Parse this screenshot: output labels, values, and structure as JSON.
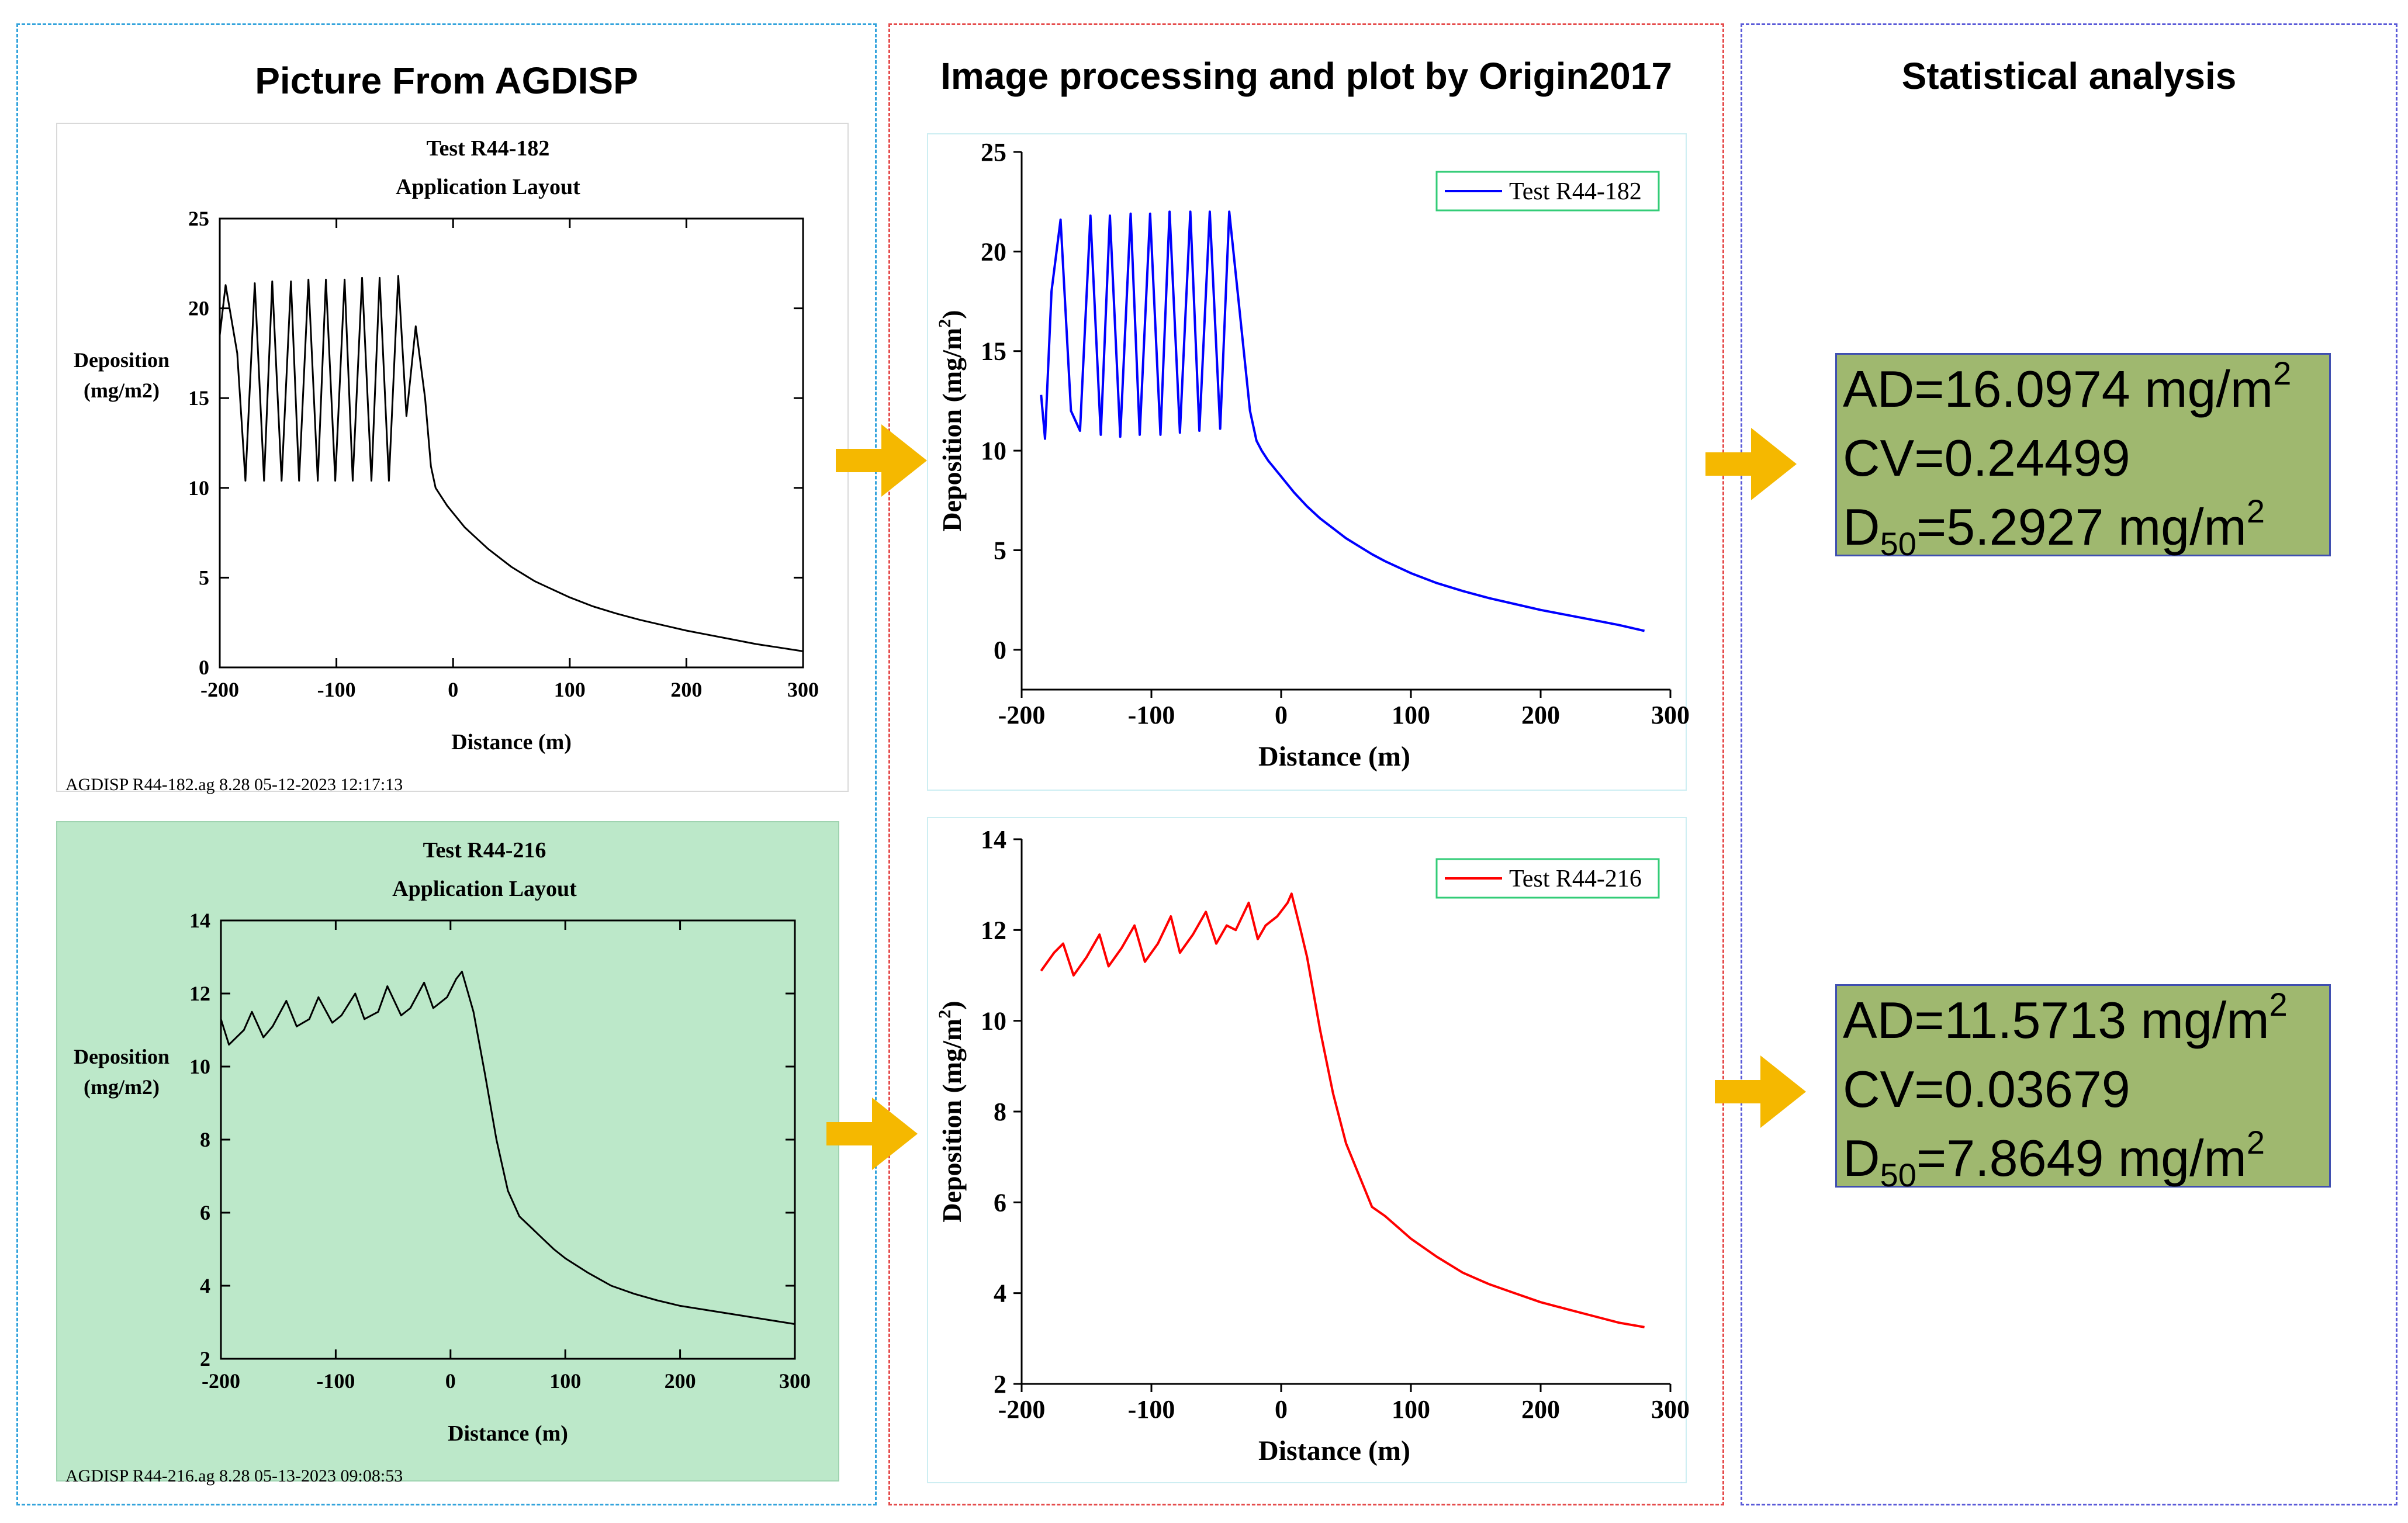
{
  "panels": {
    "left_title": "Picture From AGDISP",
    "middle_title": "Image processing and plot by Origin2017",
    "right_title": "Statistical analysis"
  },
  "colors": {
    "left_border": "#33a3dc",
    "middle_border": "#e54b4b",
    "right_border": "#5a5ad8",
    "arrow_fill": "#f5b800",
    "stats_bg": "#9fb86f",
    "series_blue": "#0000ff",
    "series_red": "#ff0000"
  },
  "stats": [
    {
      "ad_label": "AD=",
      "ad_value": "16.0974 mg/m",
      "ad_sup": "2",
      "cv": "CV=0.24499",
      "d_label": "D",
      "d_sub": "50",
      "d_value": "=5.2927 mg/m",
      "d_sup": "2"
    },
    {
      "ad_label": "AD=",
      "ad_value": "11.5713 mg/m",
      "ad_sup": "2",
      "cv": "CV=0.03679",
      "d_label": "D",
      "d_sub": "50",
      "d_value": "=7.8649 mg/m",
      "d_sup": "2"
    }
  ],
  "chart_data": [
    {
      "id": "agdisp-182",
      "type": "line",
      "style": "agdisp",
      "title": "Test R44-182",
      "subtitle": "Application Layout",
      "xlabel": "Distance (m)",
      "ylabel_line1": "Deposition",
      "ylabel_line2": "(mg/m2)",
      "footer": "AGDISP R44-182.ag 8.28 05-12-2023 12:17:13",
      "xlim": [
        -200,
        300
      ],
      "ylim": [
        0,
        25
      ],
      "xticks": [
        -200,
        -100,
        0,
        100,
        200,
        300
      ],
      "yticks": [
        0,
        5,
        10,
        15,
        20,
        25
      ],
      "line_color": "#000000",
      "series": [
        {
          "name": "Test R44-182",
          "x": [
            -200,
            -195,
            -185,
            -178,
            -170,
            -162,
            -155,
            -147,
            -139,
            -132,
            -124,
            -116,
            -109,
            -101,
            -93,
            -86,
            -78,
            -70,
            -63,
            -55,
            -47,
            -40,
            -32,
            -24,
            -19,
            -15,
            -10,
            -5,
            0,
            10,
            20,
            30,
            40,
            50,
            60,
            70,
            80,
            90,
            100,
            120,
            140,
            160,
            180,
            200,
            220,
            240,
            260,
            280,
            300
          ],
          "y": [
            18.5,
            21.3,
            17.5,
            10.4,
            21.4,
            10.4,
            21.5,
            10.4,
            21.5,
            10.4,
            21.6,
            10.4,
            21.6,
            10.4,
            21.6,
            10.4,
            21.7,
            10.4,
            21.7,
            10.4,
            21.8,
            14,
            19,
            15,
            11.2,
            10,
            9.5,
            9.0,
            8.6,
            7.8,
            7.2,
            6.6,
            6.1,
            5.6,
            5.2,
            4.8,
            4.5,
            4.2,
            3.9,
            3.4,
            3.0,
            2.65,
            2.35,
            2.05,
            1.8,
            1.55,
            1.3,
            1.1,
            0.9
          ]
        }
      ]
    },
    {
      "id": "origin-182",
      "type": "line",
      "style": "origin",
      "xlabel": "Distance (m)",
      "ylabel": "Deposition (mg/m",
      "ylabel_sup": "2",
      "ylabel_end": ")",
      "xlim": [
        -200,
        300
      ],
      "ylim": [
        -2,
        25
      ],
      "xticks": [
        -200,
        -100,
        0,
        100,
        200,
        300
      ],
      "yticks": [
        0,
        5,
        10,
        15,
        20,
        25
      ],
      "legend": "Test R44-182",
      "legend_position": "top-right",
      "line_color": "#0000ff",
      "series": [
        {
          "name": "Test R44-182",
          "x": [
            -185,
            -182,
            -177,
            -170,
            -162,
            -155,
            -147,
            -139,
            -132,
            -124,
            -116,
            -109,
            -101,
            -93,
            -86,
            -78,
            -70,
            -63,
            -55,
            -47,
            -40,
            -32,
            -24,
            -19,
            -15,
            -10,
            -5,
            0,
            10,
            20,
            30,
            40,
            50,
            60,
            70,
            80,
            90,
            100,
            120,
            140,
            160,
            180,
            200,
            220,
            240,
            260,
            280
          ],
          "y": [
            12.8,
            10.6,
            18,
            21.6,
            12,
            11,
            21.8,
            10.8,
            21.8,
            10.7,
            21.9,
            10.8,
            21.9,
            10.8,
            22.0,
            10.9,
            22.0,
            11,
            22.0,
            11.1,
            22.0,
            17,
            12,
            10.5,
            10,
            9.5,
            9.1,
            8.7,
            7.9,
            7.2,
            6.6,
            6.1,
            5.6,
            5.2,
            4.8,
            4.45,
            4.15,
            3.85,
            3.35,
            2.95,
            2.6,
            2.3,
            2.0,
            1.75,
            1.5,
            1.25,
            0.95
          ]
        }
      ]
    },
    {
      "id": "agdisp-216",
      "type": "line",
      "style": "agdisp",
      "title": "Test R44-216",
      "subtitle": "Application Layout",
      "xlabel": "Distance (m)",
      "ylabel_line1": "Deposition",
      "ylabel_line2": "(mg/m2)",
      "footer": "AGDISP R44-216.ag 8.28 05-13-2023 09:08:53",
      "xlim": [
        -200,
        300
      ],
      "ylim": [
        2,
        14
      ],
      "xticks": [
        -200,
        -100,
        0,
        100,
        200,
        300
      ],
      "yticks": [
        2,
        4,
        6,
        8,
        10,
        12,
        14
      ],
      "line_color": "#000000",
      "series": [
        {
          "name": "Test R44-216",
          "x": [
            -200,
            -193,
            -180,
            -173,
            -163,
            -155,
            -143,
            -134,
            -123,
            -115,
            -103,
            -95,
            -83,
            -75,
            -63,
            -55,
            -43,
            -35,
            -23,
            -15,
            -3,
            5,
            10,
            20,
            30,
            40,
            50,
            60,
            70,
            80,
            90,
            100,
            120,
            140,
            160,
            180,
            200,
            220,
            240,
            260,
            280,
            300
          ],
          "y": [
            11.3,
            10.6,
            11.0,
            11.5,
            10.8,
            11.1,
            11.8,
            11.1,
            11.3,
            11.9,
            11.2,
            11.4,
            12.0,
            11.3,
            11.5,
            12.2,
            11.4,
            11.6,
            12.3,
            11.6,
            11.9,
            12.4,
            12.6,
            11.5,
            9.8,
            8.0,
            6.6,
            5.9,
            5.6,
            5.3,
            5.0,
            4.75,
            4.35,
            4.0,
            3.78,
            3.6,
            3.45,
            3.35,
            3.25,
            3.15,
            3.05,
            2.95
          ]
        }
      ]
    },
    {
      "id": "origin-216",
      "type": "line",
      "style": "origin",
      "xlabel": "Distance (m)",
      "ylabel": "Deposition (mg/m",
      "ylabel_sup": "2",
      "ylabel_end": ")",
      "xlim": [
        -200,
        300
      ],
      "ylim": [
        2,
        14
      ],
      "xticks": [
        -200,
        -100,
        0,
        100,
        200,
        300
      ],
      "yticks": [
        2,
        4,
        6,
        8,
        10,
        12,
        14
      ],
      "legend": "Test R44-216",
      "legend_position": "top-right",
      "line_color": "#ff0000",
      "series": [
        {
          "name": "Test R44-216",
          "x": [
            -185,
            -175,
            -168,
            -160,
            -150,
            -140,
            -133,
            -123,
            -113,
            -105,
            -95,
            -85,
            -78,
            -68,
            -58,
            -50,
            -42,
            -35,
            -25,
            -18,
            -12,
            -3,
            5,
            8,
            15,
            20,
            30,
            40,
            50,
            60,
            70,
            80,
            90,
            100,
            120,
            140,
            160,
            180,
            200,
            220,
            240,
            260,
            280
          ],
          "y": [
            11.1,
            11.5,
            11.7,
            11.0,
            11.4,
            11.9,
            11.2,
            11.6,
            12.1,
            11.3,
            11.7,
            12.3,
            11.5,
            11.9,
            12.4,
            11.7,
            12.1,
            12.0,
            12.6,
            11.8,
            12.1,
            12.3,
            12.6,
            12.8,
            12.0,
            11.4,
            9.8,
            8.4,
            7.3,
            6.6,
            5.9,
            5.7,
            5.45,
            5.2,
            4.8,
            4.45,
            4.2,
            4.0,
            3.8,
            3.65,
            3.5,
            3.35,
            3.25
          ]
        }
      ]
    }
  ]
}
